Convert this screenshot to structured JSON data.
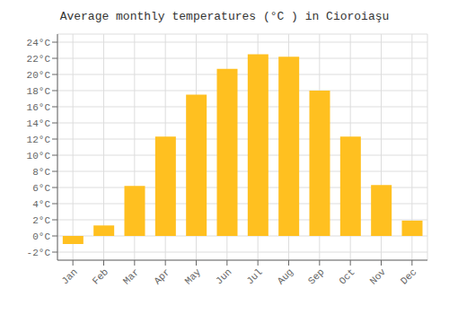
{
  "chart_data": {
    "type": "bar",
    "title": "Average monthly temperatures (°C ) in Cioroiaşu",
    "categories": [
      "Jan",
      "Feb",
      "Mar",
      "Apr",
      "May",
      "Jun",
      "Jul",
      "Aug",
      "Sep",
      "Oct",
      "Nov",
      "Dec"
    ],
    "values": [
      -1.0,
      1.3,
      6.2,
      12.3,
      17.5,
      20.7,
      22.5,
      22.2,
      18.0,
      12.3,
      6.3,
      1.9
    ],
    "color": "#FFC020",
    "ylim": [
      -3,
      25
    ],
    "yticks": [
      {
        "value": -2,
        "label": "-2°C"
      },
      {
        "value": 0,
        "label": "0°C"
      },
      {
        "value": 2,
        "label": "2°C"
      },
      {
        "value": 4,
        "label": "4°C"
      },
      {
        "value": 6,
        "label": "6°C"
      },
      {
        "value": 8,
        "label": "8°C"
      },
      {
        "value": 10,
        "label": "10°C"
      },
      {
        "value": 12,
        "label": "12°C"
      },
      {
        "value": 14,
        "label": "14°C"
      },
      {
        "value": 16,
        "label": "16°C"
      },
      {
        "value": 18,
        "label": "18°C"
      },
      {
        "value": 20,
        "label": "20°C"
      },
      {
        "value": 22,
        "label": "22°C"
      },
      {
        "value": 24,
        "label": "24°C"
      }
    ],
    "grid": true
  }
}
